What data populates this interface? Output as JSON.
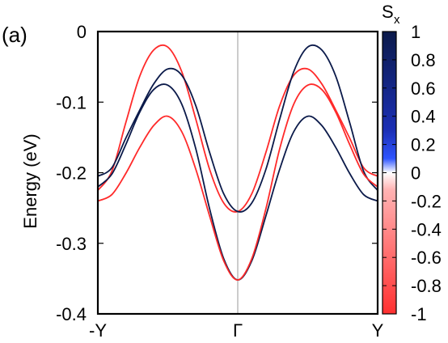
{
  "panel_label": "(a)",
  "colorbar": {
    "title_main": "S",
    "title_sub": "x",
    "ticks": [
      1,
      0.8,
      0.6,
      0.4,
      0.2,
      0,
      -0.2,
      -0.4,
      -0.6,
      -0.8,
      -1
    ],
    "tick_labels": [
      "1",
      "0.8",
      "0.6",
      "0.4",
      "0.2",
      "0",
      "-0.2",
      "-0.4",
      "-0.6",
      "-0.8",
      "-1"
    ],
    "range": [
      -1,
      1
    ],
    "colors": {
      "positive": "#0b1a4a",
      "mid": "#ffffff",
      "negative": "#ff2a2a"
    }
  },
  "chart_data": {
    "type": "line",
    "ylabel": "Energy (eV)",
    "xlabel": "",
    "ylim": [
      -0.4,
      0
    ],
    "xlim": [
      -1,
      1
    ],
    "y_ticks": [
      0,
      -0.1,
      -0.2,
      -0.3,
      -0.4
    ],
    "y_tick_labels": [
      "0",
      "-0.1",
      "-0.2",
      "-0.3",
      "-0.4"
    ],
    "x_ticks": [
      -1,
      0,
      1
    ],
    "x_tick_labels": [
      "-Y",
      "Γ",
      "Y"
    ],
    "vertical_line_at": 0,
    "series": [
      {
        "sx": -1,
        "color": "#ff2a2a",
        "x": [
          -1,
          -0.9,
          -0.8,
          -0.7,
          -0.6,
          -0.5,
          -0.4,
          -0.3,
          -0.2,
          -0.1,
          0,
          0.1,
          0.2,
          0.3,
          0.4,
          0.5,
          0.6,
          0.7,
          0.8,
          0.9,
          1
        ],
        "y": [
          -0.225,
          -0.198,
          -0.129,
          -0.063,
          -0.026,
          -0.022,
          -0.057,
          -0.124,
          -0.196,
          -0.243,
          -0.255,
          -0.23,
          -0.172,
          -0.105,
          -0.062,
          -0.053,
          -0.074,
          -0.111,
          -0.151,
          -0.193,
          -0.205
        ]
      },
      {
        "sx": 1,
        "color": "#0b1a4a",
        "x": [
          -1,
          -0.9,
          -0.8,
          -0.7,
          -0.6,
          -0.5,
          -0.4,
          -0.3,
          -0.2,
          -0.1,
          0,
          0.1,
          0.2,
          0.3,
          0.4,
          0.5,
          0.6,
          0.7,
          0.8,
          0.9,
          1
        ],
        "y": [
          -0.205,
          -0.193,
          -0.151,
          -0.111,
          -0.074,
          -0.053,
          -0.062,
          -0.105,
          -0.172,
          -0.23,
          -0.255,
          -0.243,
          -0.196,
          -0.124,
          -0.057,
          -0.022,
          -0.026,
          -0.063,
          -0.129,
          -0.198,
          -0.225
        ]
      },
      {
        "sx": 1,
        "color": "#0b1a4a",
        "x": [
          -1,
          -0.9,
          -0.8,
          -0.7,
          -0.6,
          -0.5,
          -0.4,
          -0.3,
          -0.2,
          -0.1,
          0,
          0.1,
          0.2,
          0.3,
          0.4,
          0.5,
          0.6,
          0.7,
          0.8,
          0.9,
          1
        ],
        "y": [
          -0.22,
          -0.202,
          -0.16,
          -0.114,
          -0.082,
          -0.076,
          -0.103,
          -0.166,
          -0.252,
          -0.322,
          -0.352,
          -0.325,
          -0.262,
          -0.195,
          -0.142,
          -0.12,
          -0.133,
          -0.164,
          -0.201,
          -0.231,
          -0.24
        ]
      },
      {
        "sx": -1,
        "color": "#ff2a2a",
        "x": [
          -1,
          -0.9,
          -0.8,
          -0.7,
          -0.6,
          -0.5,
          -0.4,
          -0.3,
          -0.2,
          -0.1,
          0,
          0.1,
          0.2,
          0.3,
          0.4,
          0.5,
          0.6,
          0.7,
          0.8,
          0.9,
          1
        ],
        "y": [
          -0.24,
          -0.231,
          -0.201,
          -0.164,
          -0.133,
          -0.12,
          -0.142,
          -0.195,
          -0.262,
          -0.325,
          -0.352,
          -0.322,
          -0.252,
          -0.166,
          -0.103,
          -0.076,
          -0.082,
          -0.114,
          -0.16,
          -0.202,
          -0.22
        ]
      }
    ]
  }
}
